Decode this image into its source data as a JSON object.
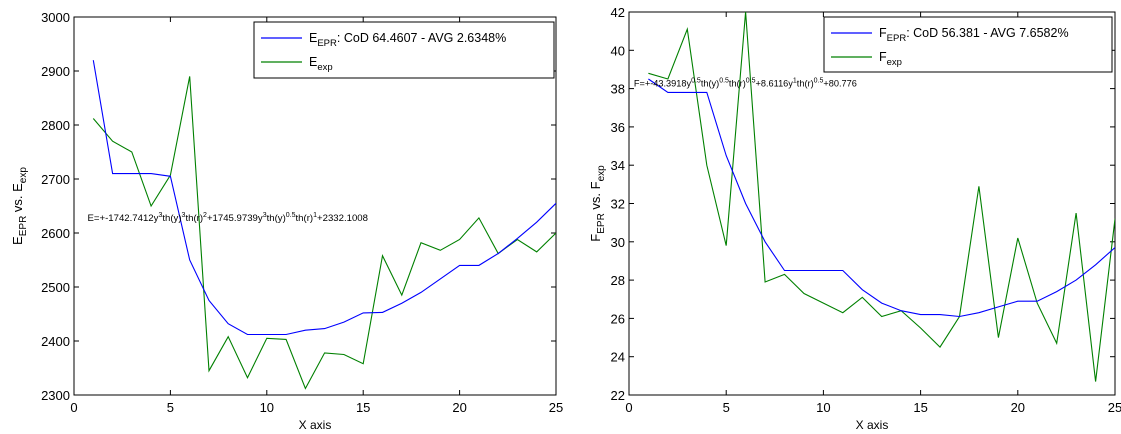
{
  "chart_data": [
    {
      "type": "line",
      "xlabel": "X axis",
      "ylabel": {
        "base1": "E",
        "sub1": "EPR",
        "mid": " vs. ",
        "base2": "E",
        "sub2": "exp"
      },
      "xlim": [
        0,
        25
      ],
      "ylim": [
        2300,
        3000
      ],
      "xticks": [
        0,
        5,
        10,
        15,
        20,
        25
      ],
      "yticks": [
        2300,
        2400,
        2500,
        2600,
        2700,
        2800,
        2900,
        3000
      ],
      "grid": false,
      "legend_position": "top-right",
      "legend": [
        {
          "base": "E",
          "sub": "EPR",
          "rest": ": CoD 64.4607 - AVG 2.6348%",
          "color": "#0000ff"
        },
        {
          "base": "E",
          "sub": "exp",
          "rest": "",
          "color": "#008000"
        }
      ],
      "annotation": {
        "parts": [
          {
            "t": "E=+-1742.7412y",
            "s": "n"
          },
          {
            "t": "3",
            "s": "sup"
          },
          {
            "t": "th(y)",
            "s": "n"
          },
          {
            "t": "3",
            "s": "sup"
          },
          {
            "t": "th(r)",
            "s": "n"
          },
          {
            "t": "2",
            "s": "sup"
          },
          {
            "t": "+1745.9739y",
            "s": "n"
          },
          {
            "t": "3",
            "s": "sup"
          },
          {
            "t": "th(y)",
            "s": "n"
          },
          {
            "t": "0.5",
            "s": "sup"
          },
          {
            "t": "th(r)",
            "s": "n"
          },
          {
            "t": "1",
            "s": "sup"
          },
          {
            "t": "+2332.1008",
            "s": "n"
          }
        ],
        "x": 0.7,
        "y": 2622
      },
      "series": [
        {
          "name": "E_EPR",
          "color": "#0000ff",
          "x": [
            1,
            2,
            3,
            4,
            5,
            6,
            7,
            8,
            9,
            10,
            11,
            12,
            13,
            14,
            15,
            16,
            17,
            18,
            19,
            20,
            21,
            22,
            23,
            24,
            25
          ],
          "values": [
            2920,
            2710,
            2710,
            2710,
            2705,
            2550,
            2475,
            2432,
            2412,
            2412,
            2412,
            2420,
            2423,
            2435,
            2452,
            2453,
            2470,
            2490,
            2515,
            2540,
            2540,
            2562,
            2590,
            2620,
            2655
          ]
        },
        {
          "name": "E_exp",
          "color": "#008000",
          "x": [
            1,
            2,
            3,
            4,
            5,
            6,
            7,
            8,
            9,
            10,
            11,
            12,
            13,
            14,
            15,
            16,
            17,
            18,
            19,
            20,
            21,
            22,
            23,
            24,
            25
          ],
          "values": [
            2812,
            2770,
            2750,
            2650,
            2707,
            2890,
            2345,
            2408,
            2332,
            2405,
            2403,
            2312,
            2378,
            2375,
            2358,
            2558,
            2485,
            2582,
            2568,
            2588,
            2628,
            2562,
            2588,
            2565,
            2600
          ]
        }
      ]
    },
    {
      "type": "line",
      "xlabel": "X axis",
      "ylabel": {
        "base1": "F",
        "sub1": "EPR",
        "mid": " vs. ",
        "base2": "F",
        "sub2": "exp"
      },
      "xlim": [
        0,
        25
      ],
      "ylim": [
        22,
        42
      ],
      "xticks": [
        0,
        5,
        10,
        15,
        20,
        25
      ],
      "yticks": [
        22,
        24,
        26,
        28,
        30,
        32,
        34,
        36,
        38,
        40,
        42
      ],
      "grid": false,
      "legend_position": "top-right",
      "legend": [
        {
          "base": "F",
          "sub": "EPR",
          "rest": ": CoD 56.381 - AVG 7.6582%",
          "color": "#0000ff"
        },
        {
          "base": "F",
          "sub": "exp",
          "rest": "",
          "color": "#008000"
        }
      ],
      "annotation": {
        "parts": [
          {
            "t": "F=+-43.3918y",
            "s": "n"
          },
          {
            "t": "0.5",
            "s": "sup"
          },
          {
            "t": "th(y)",
            "s": "n"
          },
          {
            "t": "0.5",
            "s": "sup"
          },
          {
            "t": "th(r)",
            "s": "n"
          },
          {
            "t": "0.5",
            "s": "sup"
          },
          {
            "t": "+8.6116y",
            "s": "n"
          },
          {
            "t": "1",
            "s": "sup"
          },
          {
            "t": "th(r)",
            "s": "n"
          },
          {
            "t": "0.5",
            "s": "sup"
          },
          {
            "t": "+80.776",
            "s": "n"
          }
        ],
        "x": 0.25,
        "y": 38.1
      },
      "series": [
        {
          "name": "F_EPR",
          "color": "#0000ff",
          "x": [
            1,
            2,
            3,
            4,
            5,
            6,
            7,
            8,
            9,
            10,
            11,
            12,
            13,
            14,
            15,
            16,
            17,
            18,
            19,
            20,
            21,
            22,
            23,
            24,
            25
          ],
          "values": [
            38.5,
            37.8,
            37.8,
            37.8,
            34.5,
            32.0,
            30.0,
            28.5,
            28.5,
            28.5,
            28.5,
            27.5,
            26.8,
            26.4,
            26.2,
            26.2,
            26.1,
            26.3,
            26.6,
            26.9,
            26.9,
            27.4,
            28.0,
            28.8,
            29.7
          ]
        },
        {
          "name": "F_exp",
          "color": "#008000",
          "x": [
            1,
            2,
            3,
            4,
            5,
            6,
            7,
            8,
            9,
            10,
            11,
            12,
            13,
            14,
            15,
            16,
            17,
            18,
            19,
            20,
            21,
            22,
            23,
            24,
            25
          ],
          "values": [
            38.8,
            38.5,
            41.1,
            34.0,
            29.8,
            42.0,
            27.9,
            28.3,
            27.3,
            26.8,
            26.3,
            27.1,
            26.1,
            26.4,
            25.5,
            24.5,
            26.1,
            32.9,
            25.0,
            30.2,
            26.8,
            24.7,
            31.5,
            22.7,
            31.2
          ]
        }
      ]
    }
  ]
}
